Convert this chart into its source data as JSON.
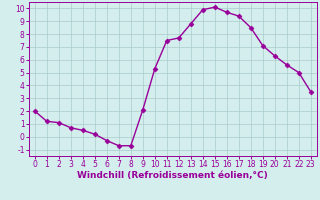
{
  "x": [
    0,
    1,
    2,
    3,
    4,
    5,
    6,
    7,
    8,
    9,
    10,
    11,
    12,
    13,
    14,
    15,
    16,
    17,
    18,
    19,
    20,
    21,
    22,
    23
  ],
  "y": [
    2,
    1.2,
    1.1,
    0.7,
    0.5,
    0.2,
    -0.3,
    -0.7,
    -0.7,
    2.1,
    5.3,
    7.5,
    7.7,
    8.8,
    9.9,
    10.1,
    9.7,
    9.4,
    8.5,
    7.1,
    6.3,
    5.6,
    5.0,
    3.5
  ],
  "line_color": "#990099",
  "marker": "D",
  "markersize": 2.5,
  "linewidth": 1.0,
  "bg_color": "#d4eeee",
  "grid_color": "#aacccc",
  "xlabel": "Windchill (Refroidissement éolien,°C)",
  "ylim": [
    -1.5,
    10.5
  ],
  "xlim": [
    -0.5,
    23.5
  ],
  "yticks": [
    -1,
    0,
    1,
    2,
    3,
    4,
    5,
    6,
    7,
    8,
    9,
    10
  ],
  "xticks": [
    0,
    1,
    2,
    3,
    4,
    5,
    6,
    7,
    8,
    9,
    10,
    11,
    12,
    13,
    14,
    15,
    16,
    17,
    18,
    19,
    20,
    21,
    22,
    23
  ],
  "axis_color": "#990099",
  "label_color": "#990099",
  "label_fontsize": 6.5,
  "tick_fontsize": 5.5
}
